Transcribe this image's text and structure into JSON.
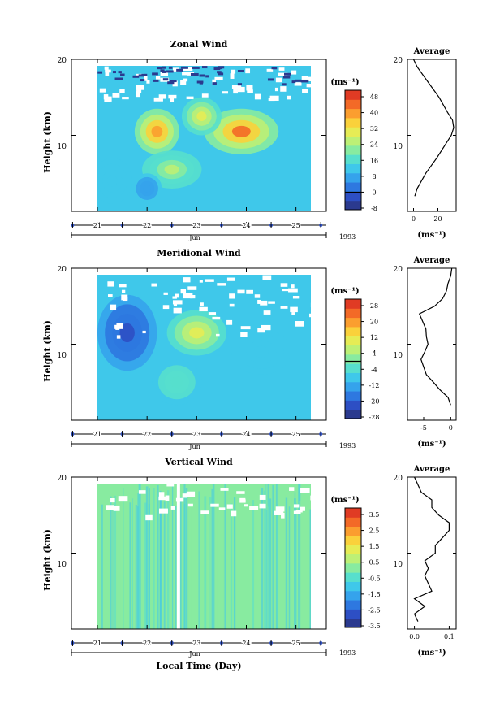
{
  "xlabel": "Local Time (Day)",
  "month_label": "Jun",
  "year_label": "1993",
  "ylabel": "Height (km)",
  "unit": "(ms⁻¹)",
  "average_title": "Average",
  "x_ticks": [
    "21",
    "22",
    "23",
    "24",
    "25"
  ],
  "y_ticks": [
    "20",
    "10"
  ],
  "chart_data": [
    {
      "type": "heatmap",
      "title": "Zonal Wind",
      "x_range": [
        21,
        25.3
      ],
      "y_range": [
        0,
        20
      ],
      "colorbar_ticks": [
        "48",
        "40",
        "32",
        "24",
        "16",
        "8",
        "0",
        "-8"
      ],
      "colorbar_range": [
        -12,
        52
      ],
      "blobs": [
        {
          "day": 22.2,
          "km": 10.5,
          "rx": 0.45,
          "ry": 3.0,
          "value": 40
        },
        {
          "day": 23.9,
          "km": 10.5,
          "rx": 0.75,
          "ry": 3.0,
          "value": 44
        },
        {
          "day": 22.5,
          "km": 5.5,
          "rx": 0.6,
          "ry": 2.5,
          "value": 24
        },
        {
          "day": 23.1,
          "km": 12.5,
          "rx": 0.4,
          "ry": 2.5,
          "value": 30
        },
        {
          "day": 22.0,
          "km": 3.0,
          "rx": 0.3,
          "ry": 2.0,
          "value": 4
        },
        {
          "day": 21.3,
          "km": 4.0,
          "rx": 0.4,
          "ry": 3.0,
          "value": 10
        }
      ],
      "average": {
        "title": "Average",
        "xlabel": "(ms⁻¹)",
        "x_ticks": [
          "0",
          "20"
        ],
        "xlim": [
          -5,
          35
        ],
        "height_km": [
          2,
          3,
          5,
          7,
          9,
          10,
          11,
          12,
          13,
          15,
          17,
          19,
          20
        ],
        "values": [
          1,
          3,
          10,
          19,
          27,
          31,
          33,
          32,
          28,
          21,
          12,
          3,
          0
        ]
      }
    },
    {
      "type": "heatmap",
      "title": "Meridional Wind",
      "x_range": [
        21,
        25.3
      ],
      "y_range": [
        0,
        20
      ],
      "colorbar_ticks": [
        "28",
        "20",
        "12",
        "4",
        "-4",
        "-12",
        "-20",
        "-28"
      ],
      "colorbar_range": [
        -32,
        32
      ],
      "blobs": [
        {
          "day": 21.6,
          "km": 11.5,
          "rx": 0.6,
          "ry": 5.0,
          "value": -26
        },
        {
          "day": 23.0,
          "km": 11.5,
          "rx": 0.6,
          "ry": 3.0,
          "value": 8
        },
        {
          "day": 24.3,
          "km": 9.0,
          "rx": 0.6,
          "ry": 3.0,
          "value": -8
        },
        {
          "day": 22.6,
          "km": 5.0,
          "rx": 0.5,
          "ry": 3.0,
          "value": -4
        }
      ],
      "average": {
        "title": "Average",
        "xlabel": "(ms⁻¹)",
        "x_ticks": [
          "-5",
          "0"
        ],
        "xlim": [
          -8,
          1
        ],
        "height_km": [
          2,
          3,
          4,
          5,
          6,
          7,
          8,
          9,
          10,
          11,
          12,
          13,
          14,
          15,
          16,
          17,
          18,
          19,
          20
        ],
        "values": [
          0,
          -0.5,
          -2,
          -3.2,
          -4.5,
          -5,
          -5.5,
          -4.8,
          -4.2,
          -4.5,
          -4.6,
          -5.2,
          -5.8,
          -3.0,
          -1.5,
          -0.8,
          -0.5,
          0,
          0.2
        ]
      }
    },
    {
      "type": "heatmap",
      "title": "Vertical Wind",
      "x_range": [
        21,
        25.3
      ],
      "y_range": [
        0,
        20
      ],
      "colorbar_ticks": [
        "3.5",
        "2.5",
        "1.5",
        "0.5",
        "-0.5",
        "-1.5",
        "-2.5",
        "-3.5"
      ],
      "colorbar_range": [
        -4,
        4
      ],
      "blobs": [],
      "average": {
        "title": "Average",
        "xlabel": "(ms⁻¹)",
        "x_ticks": [
          "0.0",
          "0.1"
        ],
        "xlim": [
          -0.02,
          0.12
        ],
        "height_km": [
          1,
          2,
          3,
          4,
          5,
          6,
          7,
          8,
          9,
          10,
          11,
          12,
          13,
          14,
          15,
          16,
          17,
          18,
          19,
          20
        ],
        "values": [
          0.01,
          0.0,
          0.03,
          0.0,
          0.05,
          0.04,
          0.03,
          0.04,
          0.03,
          0.06,
          0.06,
          0.08,
          0.1,
          0.1,
          0.07,
          0.05,
          0.05,
          0.02,
          0.01,
          0.0
        ]
      }
    }
  ]
}
